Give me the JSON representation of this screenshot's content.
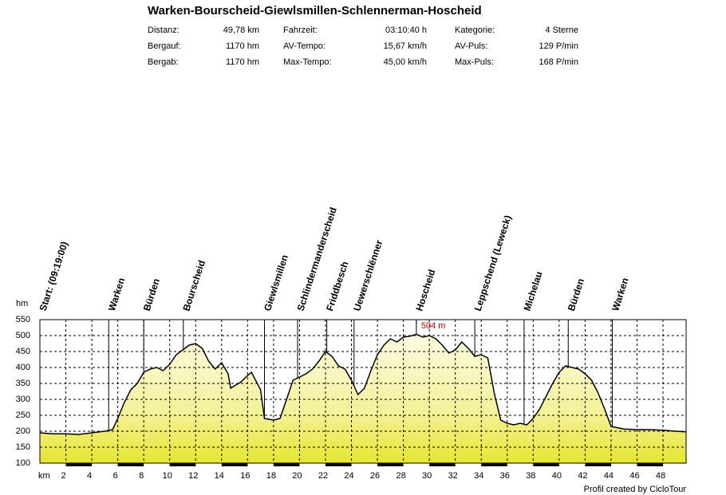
{
  "chart_data": {
    "type": "area",
    "title": "Warken-Bourscheid-Giewlsmillen-Schlennerman-Hoscheid",
    "stats": [
      [
        {
          "label": "Distanz:",
          "value": "49,78 km"
        },
        {
          "label": "Fahrzeit:",
          "value": "03:10:40 h"
        },
        {
          "label": "Kategorie:",
          "value": "4 Sterne"
        }
      ],
      [
        {
          "label": "Bergauf:",
          "value": "1170 hm"
        },
        {
          "label": "AV-Tempo:",
          "value": "15,67 km/h"
        },
        {
          "label": "AV-Puls:",
          "value": "129 P/min"
        }
      ],
      [
        {
          "label": "Bergab:",
          "value": "1170 hm"
        },
        {
          "label": "Max-Tempo:",
          "value": "45,00 km/h"
        },
        {
          "label": "Max-Puls:",
          "value": "168 P/min"
        }
      ]
    ],
    "x_label": "km",
    "y_label": "hm",
    "footer": "Profil created by CicloTour",
    "color": "#f0f080",
    "grid": true,
    "xlim": [
      0,
      49.78
    ],
    "ylim": [
      100,
      550
    ],
    "xticks": [
      2,
      4,
      6,
      8,
      10,
      12,
      14,
      16,
      18,
      20,
      22,
      24,
      26,
      28,
      30,
      32,
      34,
      36,
      38,
      40,
      42,
      44,
      46,
      48
    ],
    "yticks": [
      100,
      150,
      200,
      250,
      300,
      350,
      400,
      450,
      500,
      550
    ],
    "x": [
      0,
      1,
      2,
      3,
      4,
      5,
      5.6,
      6,
      6.5,
      7,
      7.5,
      8,
      8.5,
      9,
      9.5,
      10,
      10.5,
      11,
      11.5,
      12,
      12.5,
      13,
      13.5,
      14,
      14.5,
      14.7,
      15.5,
      16,
      16.3,
      17,
      17.3,
      18,
      18.5,
      19,
      19.5,
      20,
      20.5,
      21,
      21.5,
      22,
      22.5,
      23,
      23.5,
      24,
      24.5,
      25,
      25.5,
      26,
      26.5,
      27,
      27.5,
      28,
      28.5,
      29,
      29.5,
      30,
      30.5,
      31,
      31.5,
      32,
      32.5,
      33,
      33.5,
      34,
      34.5,
      35,
      35.5,
      36,
      36.5,
      37,
      37.5,
      38,
      38.5,
      39,
      39.5,
      40,
      40.5,
      41,
      41.5,
      42,
      42.5,
      43,
      43.5,
      44,
      45,
      46,
      47,
      48,
      49,
      49.78
    ],
    "values": [
      195,
      192,
      192,
      190,
      195,
      200,
      205,
      240,
      290,
      330,
      350,
      385,
      395,
      400,
      390,
      410,
      440,
      455,
      470,
      475,
      460,
      420,
      395,
      415,
      380,
      335,
      355,
      375,
      385,
      330,
      240,
      235,
      240,
      300,
      360,
      370,
      380,
      395,
      420,
      450,
      435,
      405,
      395,
      360,
      315,
      335,
      390,
      440,
      470,
      490,
      480,
      495,
      498,
      504,
      495,
      500,
      490,
      470,
      445,
      455,
      480,
      460,
      435,
      440,
      430,
      320,
      235,
      225,
      220,
      225,
      220,
      240,
      270,
      310,
      350,
      385,
      405,
      400,
      395,
      380,
      360,
      320,
      270,
      215,
      207,
      205,
      205,
      203,
      200,
      198
    ],
    "waypoints": [
      {
        "x": 0,
        "label": "Start: (09:19:00)"
      },
      {
        "x": 5.3,
        "label": "Warken"
      },
      {
        "x": 8.0,
        "label": "Bürden"
      },
      {
        "x": 11.05,
        "label": "Bourscheid"
      },
      {
        "x": 17.3,
        "label": "Giewlsmillen"
      },
      {
        "x": 19.85,
        "label": "Schlindermanderscheid"
      },
      {
        "x": 22.1,
        "label": "Friddbesch"
      },
      {
        "x": 24.2,
        "label": "Uewerschlënner"
      },
      {
        "x": 29.0,
        "label": "Hoscheid"
      },
      {
        "x": 33.5,
        "label": "Leppschend (Leweck)"
      },
      {
        "x": 37.3,
        "label": "Michelau"
      },
      {
        "x": 40.7,
        "label": "Bürden"
      },
      {
        "x": 44.1,
        "label": "Warken"
      }
    ],
    "annotations": [
      {
        "x": 29,
        "text": "504 m"
      }
    ]
  }
}
